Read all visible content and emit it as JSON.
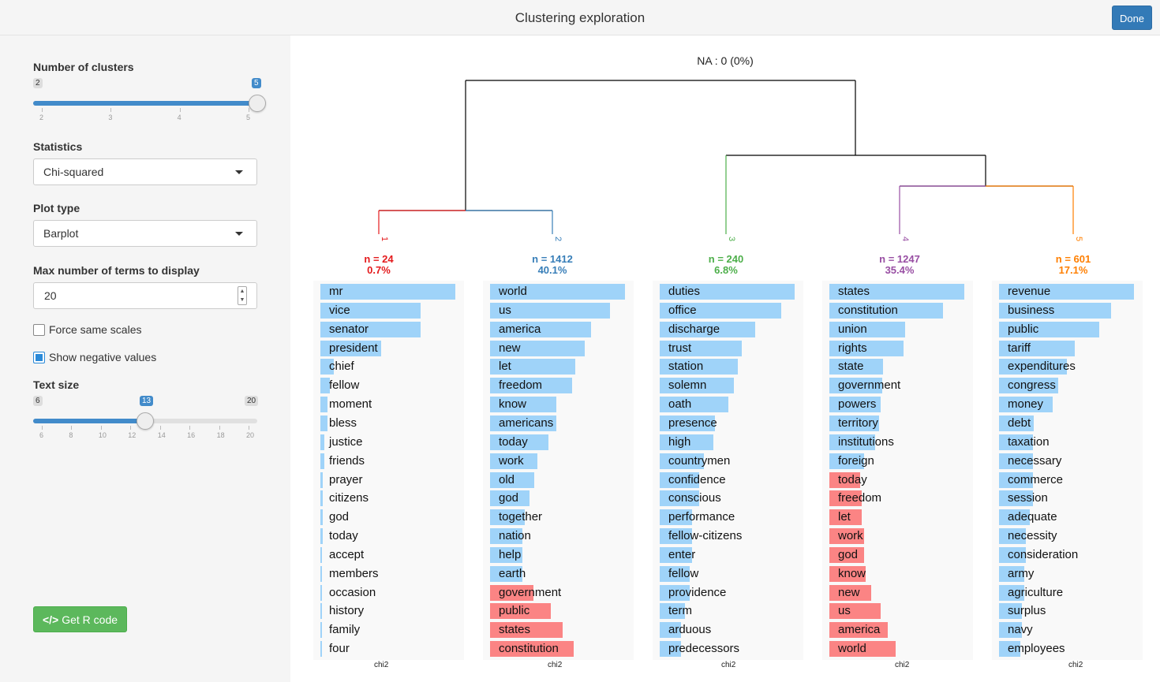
{
  "header": {
    "title": "Clustering exploration",
    "done_label": "Done"
  },
  "colors": {
    "pos_bar": "#9fd3f9",
    "neg_bar": "#fb8484",
    "c1": "#e41a1c",
    "c2": "#377eb8",
    "c3": "#4daf4a",
    "c4": "#984ea3",
    "c5": "#ff7f00"
  },
  "sidebar": {
    "clusters": {
      "label": "Number of clusters",
      "min": "2",
      "max": "5",
      "value": "5",
      "ticks": [
        "2",
        "3",
        "4",
        "5"
      ],
      "value_fraction": 1.0
    },
    "statistics": {
      "label": "Statistics",
      "value": "Chi-squared"
    },
    "plot_type": {
      "label": "Plot type",
      "value": "Barplot"
    },
    "max_terms": {
      "label": "Max number of terms to display",
      "value": "20"
    },
    "force_same_scales": {
      "label": "Force same scales",
      "checked": false
    },
    "show_negative": {
      "label": "Show negative values",
      "checked": true
    },
    "text_size": {
      "label": "Text size",
      "min": "6",
      "max": "20",
      "value": "13",
      "ticks": [
        "6",
        "8",
        "10",
        "12",
        "14",
        "16",
        "18",
        "20"
      ],
      "value_fraction": 0.5
    },
    "r_code_label": "Get R code"
  },
  "dendrogram": {
    "na_label": "NA : 0 (0%)",
    "leaf_labels": [
      "1",
      "2",
      "3",
      "4",
      "5"
    ]
  },
  "clusters": [
    {
      "n": "n = 24",
      "pct": "0.7%",
      "color": "#e41a1c",
      "axis": "chi2",
      "terms": [
        "mr",
        "vice",
        "senator",
        "president",
        "chief",
        "fellow",
        "moment",
        "bless",
        "justice",
        "friends",
        "prayer",
        "citizens",
        "god",
        "today",
        "accept",
        "members",
        "occasion",
        "history",
        "family",
        "four"
      ],
      "values": [
        1.0,
        0.74,
        0.74,
        0.45,
        0.1,
        0.07,
        0.05,
        0.05,
        0.03,
        0.03,
        0.02,
        0.02,
        0.02,
        0.02,
        0.01,
        0.01,
        0.01,
        0.01,
        0.01,
        0.01
      ]
    },
    {
      "n": "n = 1412",
      "pct": "40.1%",
      "color": "#377eb8",
      "axis": "chi2",
      "terms": [
        "world",
        "us",
        "america",
        "new",
        "let",
        "freedom",
        "know",
        "americans",
        "today",
        "work",
        "old",
        "god",
        "together",
        "nation",
        "help",
        "earth",
        "government",
        "public",
        "states",
        "constitution"
      ],
      "values": [
        1.0,
        0.89,
        0.75,
        0.7,
        0.63,
        0.61,
        0.49,
        0.49,
        0.43,
        0.35,
        0.33,
        0.29,
        0.26,
        0.24,
        0.24,
        0.24,
        -0.32,
        -0.45,
        -0.54,
        -0.62
      ]
    },
    {
      "n": "n = 240",
      "pct": "6.8%",
      "color": "#4daf4a",
      "axis": "chi2",
      "terms": [
        "duties",
        "office",
        "discharge",
        "trust",
        "station",
        "solemn",
        "oath",
        "presence",
        "high",
        "countrymen",
        "confidence",
        "conscious",
        "performance",
        "fellow-citizens",
        "enter",
        "fellow",
        "providence",
        "term",
        "arduous",
        "predecessors"
      ],
      "values": [
        1.0,
        0.9,
        0.71,
        0.61,
        0.58,
        0.55,
        0.51,
        0.41,
        0.4,
        0.33,
        0.29,
        0.29,
        0.24,
        0.24,
        0.24,
        0.22,
        0.22,
        0.19,
        0.16,
        0.16
      ]
    },
    {
      "n": "n = 1247",
      "pct": "35.4%",
      "color": "#984ea3",
      "axis": "chi2",
      "terms": [
        "states",
        "constitution",
        "union",
        "rights",
        "state",
        "government",
        "powers",
        "territory",
        "institutions",
        "foreign",
        "today",
        "freedom",
        "let",
        "work",
        "god",
        "know",
        "new",
        "us",
        "america",
        "world"
      ],
      "values": [
        1.0,
        0.84,
        0.56,
        0.55,
        0.4,
        0.39,
        0.38,
        0.37,
        0.34,
        0.26,
        -0.23,
        -0.24,
        -0.24,
        -0.26,
        -0.26,
        -0.27,
        -0.31,
        -0.38,
        -0.43,
        -0.49
      ]
    },
    {
      "n": "n = 601",
      "pct": "17.1%",
      "color": "#ff7f00",
      "axis": "chi2",
      "terms": [
        "revenue",
        "business",
        "public",
        "tariff",
        "expenditures",
        "congress",
        "money",
        "debt",
        "taxation",
        "necessary",
        "commerce",
        "session",
        "adequate",
        "necessity",
        "consideration",
        "army",
        "agriculture",
        "surplus",
        "navy",
        "employees"
      ],
      "values": [
        1.0,
        0.83,
        0.74,
        0.56,
        0.5,
        0.44,
        0.4,
        0.26,
        0.25,
        0.25,
        0.25,
        0.25,
        0.23,
        0.2,
        0.2,
        0.19,
        0.19,
        0.17,
        0.17,
        0.16
      ]
    }
  ]
}
